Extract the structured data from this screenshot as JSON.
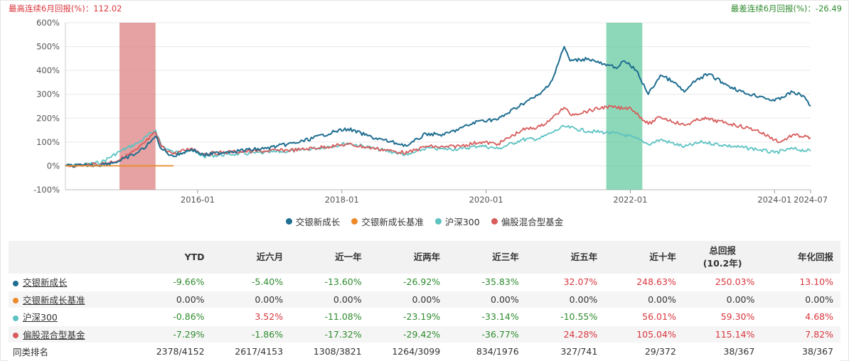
{
  "header": {
    "max_label": "最高连续6月回报(%)：112.02",
    "min_label": "最差连续6月回报(%)：-26.49"
  },
  "chart_data": {
    "type": "line",
    "y_ticks": [
      "600%",
      "500%",
      "400%",
      "300%",
      "200%",
      "100%",
      "0%",
      "-100%"
    ],
    "ylim": [
      -100,
      600
    ],
    "x_ticks": [
      "2016-01",
      "2018-01",
      "2020-01",
      "2022-01",
      "2024-01",
      "2024-07"
    ],
    "xlim": [
      "2014-03",
      "2024-07"
    ],
    "highlight_bands": [
      {
        "start": "2014-12",
        "end": "2015-06",
        "color": "#dc7a7a"
      },
      {
        "start": "2021-09",
        "end": "2022-03",
        "color": "#5cc79a"
      }
    ],
    "series": [
      {
        "name": "交银新成长",
        "color": "#1f6e91",
        "points": [
          [
            "2014-03",
            0
          ],
          [
            "2014-06",
            2
          ],
          [
            "2014-09",
            5
          ],
          [
            "2014-12",
            20
          ],
          [
            "2015-03",
            55
          ],
          [
            "2015-05",
            95
          ],
          [
            "2015-06",
            125
          ],
          [
            "2015-07",
            70
          ],
          [
            "2015-09",
            40
          ],
          [
            "2015-12",
            70
          ],
          [
            "2016-02",
            45
          ],
          [
            "2016-06",
            60
          ],
          [
            "2016-12",
            72
          ],
          [
            "2017-06",
            100
          ],
          [
            "2017-12",
            145
          ],
          [
            "2018-02",
            155
          ],
          [
            "2018-06",
            120
          ],
          [
            "2018-10",
            95
          ],
          [
            "2018-12",
            85
          ],
          [
            "2019-03",
            135
          ],
          [
            "2019-06",
            130
          ],
          [
            "2019-09",
            160
          ],
          [
            "2019-12",
            190
          ],
          [
            "2020-03",
            195
          ],
          [
            "2020-07",
            260
          ],
          [
            "2020-10",
            300
          ],
          [
            "2020-12",
            360
          ],
          [
            "2021-02",
            500
          ],
          [
            "2021-03",
            440
          ],
          [
            "2021-06",
            450
          ],
          [
            "2021-09",
            420
          ],
          [
            "2021-11",
            415
          ],
          [
            "2021-12",
            440
          ],
          [
            "2022-02",
            400
          ],
          [
            "2022-04",
            300
          ],
          [
            "2022-06",
            380
          ],
          [
            "2022-08",
            355
          ],
          [
            "2022-10",
            310
          ],
          [
            "2022-12",
            360
          ],
          [
            "2023-02",
            385
          ],
          [
            "2023-05",
            340
          ],
          [
            "2023-08",
            305
          ],
          [
            "2023-11",
            290
          ],
          [
            "2024-01",
            272
          ],
          [
            "2024-04",
            310
          ],
          [
            "2024-06",
            290
          ],
          [
            "2024-07",
            250
          ]
        ]
      },
      {
        "name": "交银新成长基准",
        "color": "#ec8a28",
        "points": [
          [
            "2014-03",
            0
          ],
          [
            "2015-09",
            0
          ]
        ]
      },
      {
        "name": "沪深300",
        "color": "#5cc2c2",
        "points": [
          [
            "2014-03",
            0
          ],
          [
            "2014-06",
            5
          ],
          [
            "2014-09",
            15
          ],
          [
            "2014-12",
            60
          ],
          [
            "2015-03",
            95
          ],
          [
            "2015-06",
            150
          ],
          [
            "2015-07",
            85
          ],
          [
            "2015-09",
            55
          ],
          [
            "2015-12",
            65
          ],
          [
            "2016-02",
            40
          ],
          [
            "2016-06",
            48
          ],
          [
            "2016-12",
            55
          ],
          [
            "2017-06",
            65
          ],
          [
            "2017-12",
            85
          ],
          [
            "2018-02",
            95
          ],
          [
            "2018-06",
            75
          ],
          [
            "2018-10",
            55
          ],
          [
            "2018-12",
            45
          ],
          [
            "2019-03",
            75
          ],
          [
            "2019-06",
            70
          ],
          [
            "2019-09",
            72
          ],
          [
            "2019-12",
            85
          ],
          [
            "2020-03",
            72
          ],
          [
            "2020-07",
            110
          ],
          [
            "2020-10",
            115
          ],
          [
            "2020-12",
            140
          ],
          [
            "2021-02",
            165
          ],
          [
            "2021-06",
            145
          ],
          [
            "2021-09",
            140
          ],
          [
            "2021-12",
            130
          ],
          [
            "2022-03",
            105
          ],
          [
            "2022-04",
            90
          ],
          [
            "2022-06",
            110
          ],
          [
            "2022-10",
            80
          ],
          [
            "2023-01",
            100
          ],
          [
            "2023-05",
            85
          ],
          [
            "2023-10",
            70
          ],
          [
            "2024-01",
            55
          ],
          [
            "2024-04",
            72
          ],
          [
            "2024-07",
            62
          ]
        ]
      },
      {
        "name": "偏股混合型基金",
        "color": "#d85c5c",
        "points": [
          [
            "2014-03",
            0
          ],
          [
            "2014-06",
            3
          ],
          [
            "2014-09",
            8
          ],
          [
            "2014-12",
            25
          ],
          [
            "2015-03",
            70
          ],
          [
            "2015-06",
            140
          ],
          [
            "2015-07",
            80
          ],
          [
            "2015-09",
            50
          ],
          [
            "2015-12",
            75
          ],
          [
            "2016-02",
            50
          ],
          [
            "2016-06",
            58
          ],
          [
            "2016-12",
            62
          ],
          [
            "2017-06",
            68
          ],
          [
            "2017-12",
            85
          ],
          [
            "2018-02",
            90
          ],
          [
            "2018-06",
            75
          ],
          [
            "2018-10",
            60
          ],
          [
            "2018-12",
            55
          ],
          [
            "2019-03",
            82
          ],
          [
            "2019-06",
            78
          ],
          [
            "2019-09",
            85
          ],
          [
            "2019-12",
            100
          ],
          [
            "2020-03",
            92
          ],
          [
            "2020-07",
            150
          ],
          [
            "2020-10",
            165
          ],
          [
            "2020-12",
            200
          ],
          [
            "2021-02",
            245
          ],
          [
            "2021-03",
            215
          ],
          [
            "2021-06",
            230
          ],
          [
            "2021-09",
            248
          ],
          [
            "2021-12",
            240
          ],
          [
            "2022-01",
            245
          ],
          [
            "2022-04",
            175
          ],
          [
            "2022-06",
            205
          ],
          [
            "2022-10",
            170
          ],
          [
            "2023-01",
            200
          ],
          [
            "2023-05",
            180
          ],
          [
            "2023-10",
            150
          ],
          [
            "2024-01",
            110
          ],
          [
            "2024-02",
            100
          ],
          [
            "2024-04",
            130
          ],
          [
            "2024-07",
            118
          ]
        ]
      }
    ]
  },
  "legend": [
    {
      "label": "交银新成长",
      "color": "#1f6e91"
    },
    {
      "label": "交银新成长基准",
      "color": "#ec8a28"
    },
    {
      "label": "沪深300",
      "color": "#5cc2c2"
    },
    {
      "label": "偏股混合型基金",
      "color": "#d85c5c"
    }
  ],
  "table": {
    "headers": [
      "",
      "YTD",
      "近六月",
      "近一年",
      "近两年",
      "近三年",
      "近五年",
      "近十年",
      "总回报\n(10.2年)",
      "年化回报"
    ],
    "rows": [
      {
        "name": "交银新成长",
        "color": "#1f6e91",
        "values": [
          "-9.66%",
          "-5.40%",
          "-13.60%",
          "-26.92%",
          "-35.83%",
          "32.07%",
          "248.63%",
          "250.03%",
          "13.10%"
        ]
      },
      {
        "name": "交银新成长基准",
        "color": "#ec8a28",
        "values": [
          "0.00%",
          "0.00%",
          "0.00%",
          "0.00%",
          "0.00%",
          "0.00%",
          "0.00%",
          "0.00%",
          "0.00%"
        ]
      },
      {
        "name": "沪深300",
        "color": "#5cc2c2",
        "values": [
          "-0.86%",
          "3.52%",
          "-11.08%",
          "-23.19%",
          "-33.14%",
          "-10.55%",
          "56.01%",
          "59.30%",
          "4.68%"
        ]
      },
      {
        "name": "偏股混合型基金",
        "color": "#d85c5c",
        "values": [
          "-7.29%",
          "-1.86%",
          "-17.32%",
          "-29.42%",
          "-36.77%",
          "24.28%",
          "105.04%",
          "115.14%",
          "7.82%"
        ]
      }
    ],
    "rank_row": {
      "name": "同类排名",
      "values": [
        "2378/4152",
        "2617/4153",
        "1308/3821",
        "1264/3099",
        "834/1976",
        "327/741",
        "29/372",
        "38/367",
        "38/367"
      ]
    }
  }
}
